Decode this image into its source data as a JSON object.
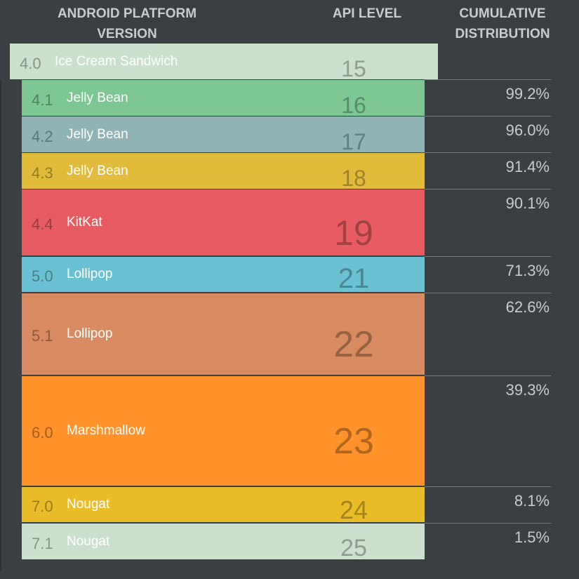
{
  "chart_data": {
    "type": "table",
    "columns": [
      "ANDROID PLATFORM VERSION",
      "API LEVEL",
      "CUMULATIVE DISTRIBUTION"
    ],
    "rows": [
      {
        "version": "4.0",
        "codename": "Ice Cream Sandwich",
        "api": "15",
        "cumulative": "",
        "color": "#cbe0cd"
      },
      {
        "version": "4.1",
        "codename": "Jelly Bean",
        "api": "16",
        "cumulative": "99.2%",
        "color": "#7ec793"
      },
      {
        "version": "4.2",
        "codename": "Jelly Bean",
        "api": "17",
        "cumulative": "96.0%",
        "color": "#90b3b5"
      },
      {
        "version": "4.3",
        "codename": "Jelly Bean",
        "api": "18",
        "cumulative": "91.4%",
        "color": "#e0bb3c"
      },
      {
        "version": "4.4",
        "codename": "KitKat",
        "api": "19",
        "cumulative": "90.1%",
        "color": "#e65c61"
      },
      {
        "version": "5.0",
        "codename": "Lollipop",
        "api": "21",
        "cumulative": "71.3%",
        "color": "#6ac1d3"
      },
      {
        "version": "5.1",
        "codename": "Lollipop",
        "api": "22",
        "cumulative": "62.6%",
        "color": "#d88b62"
      },
      {
        "version": "6.0",
        "codename": "Marshmallow",
        "api": "23",
        "cumulative": "39.3%",
        "color": "#ff922a"
      },
      {
        "version": "7.0",
        "codename": "Nougat",
        "api": "24",
        "cumulative": "8.1%",
        "color": "#e9bd2a"
      },
      {
        "version": "7.1",
        "codename": "Nougat",
        "api": "25",
        "cumulative": "1.5%",
        "color": "#cbe0cd"
      }
    ]
  },
  "header": {
    "version_line1": "ANDROID PLATFORM",
    "version_line2": "VERSION",
    "api": "API LEVEL",
    "cum_line1": "CUMULATIVE",
    "cum_line2": "DISTRIBUTION"
  }
}
